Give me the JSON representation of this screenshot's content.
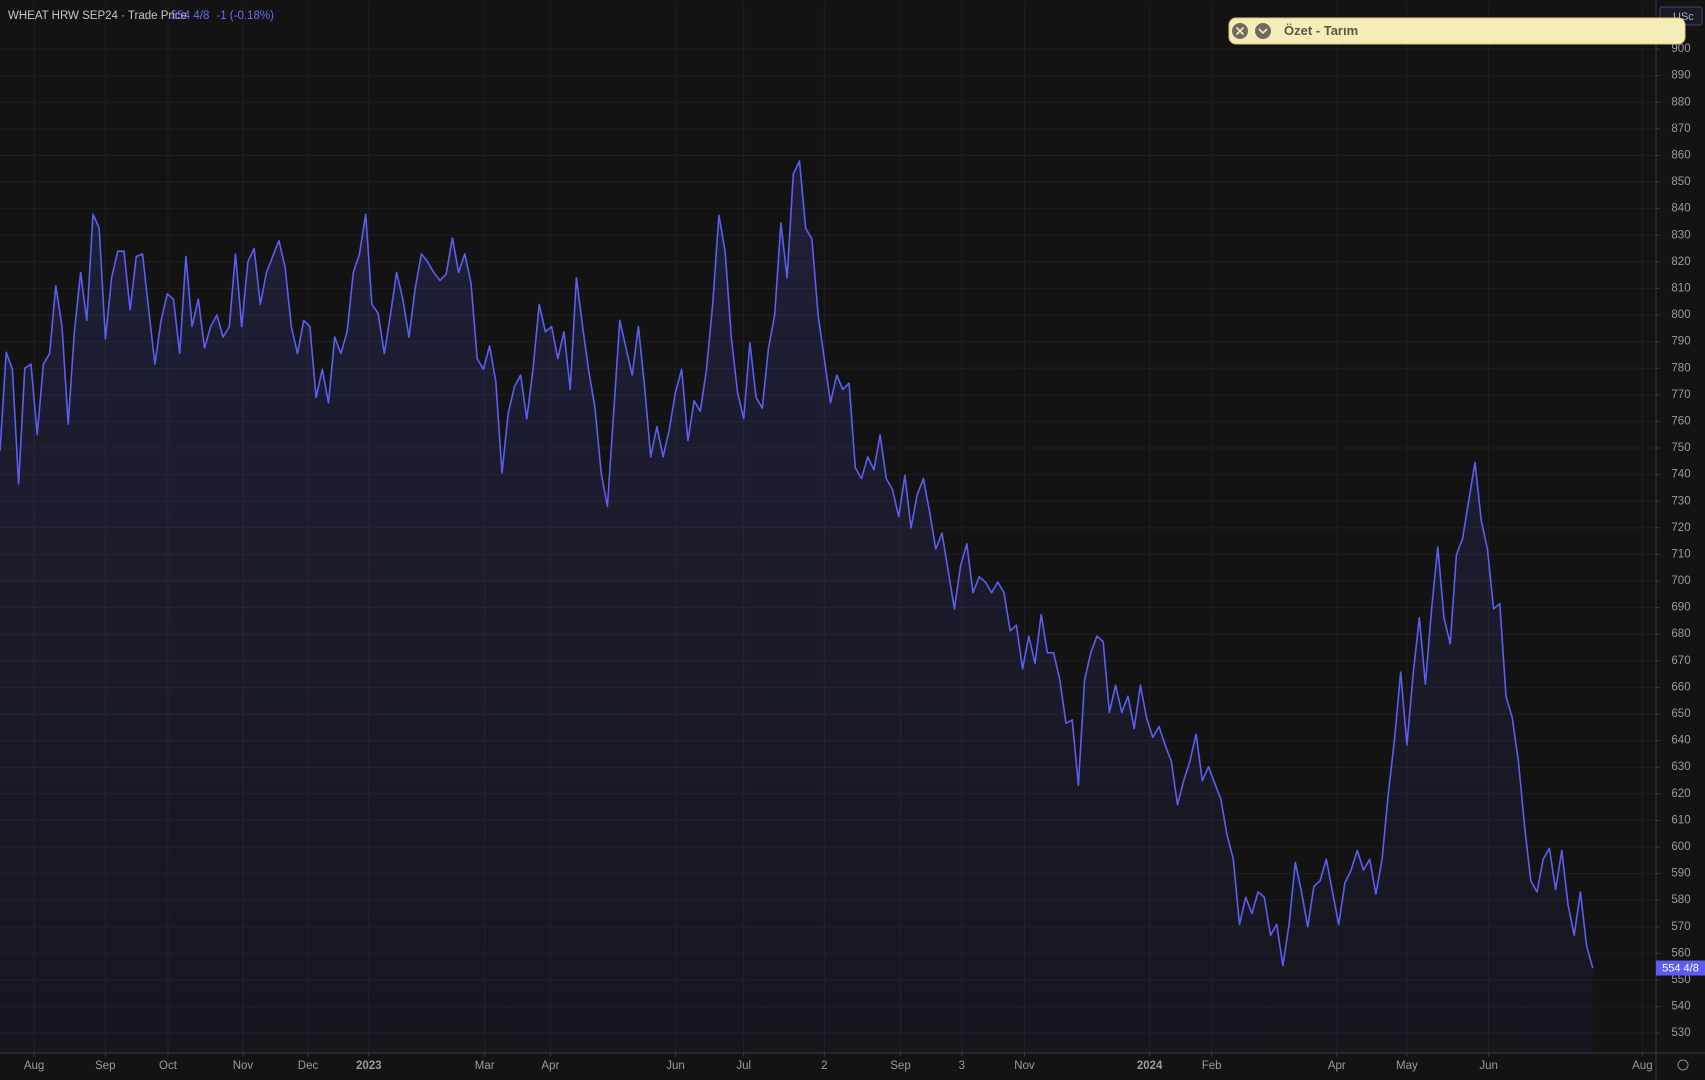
{
  "header": {
    "symbol": "WHEAT HRW SEP24 · Trade Price",
    "change": "-1 (-0.18%)",
    "currency": "USc"
  },
  "panel": {
    "title": "Özet - Tarım"
  },
  "chart_data": {
    "type": "area",
    "area": true,
    "grid": true,
    "last_price": {
      "value": 554.5,
      "label": "554 4/8"
    },
    "series": [
      {
        "color": "#5b5ef0",
        "values": [
          749,
          786,
          779.6,
          736.5,
          780,
          781.5,
          755,
          781.5,
          785.5,
          811,
          795.7,
          759,
          793.7,
          816,
          798,
          838,
          832.6,
          791,
          814,
          824,
          824,
          802,
          822,
          823,
          802,
          781.5,
          798,
          808,
          806,
          785.5,
          822,
          795.7,
          806,
          787.6,
          795.7,
          800,
          791.7,
          795.7,
          823,
          795.7,
          820,
          825,
          804,
          816,
          822,
          828,
          818,
          795.7,
          785.5,
          798,
          795.7,
          769,
          779.6,
          767,
          791.7,
          785.5,
          793.7,
          816,
          823,
          837.9,
          804,
          800.7,
          785.5,
          800,
          816,
          806,
          791.7,
          810,
          823,
          820,
          816,
          813,
          815.4,
          829,
          816,
          823,
          812,
          783.6,
          779.6,
          788.4,
          775,
          740.6,
          763,
          773,
          777.4,
          761,
          779.6,
          804,
          793.7,
          795.7,
          783.6,
          793.7,
          772,
          814,
          795.7,
          778.8,
          765,
          740.6,
          728,
          763,
          798,
          787.6,
          777.4,
          795.7,
          773,
          746.7,
          758,
          746.7,
          757,
          771,
          779.6,
          752.8,
          767.8,
          763.8,
          779.6,
          804,
          837.5,
          824,
          791.7,
          771,
          761,
          789.6,
          769,
          765,
          787.6,
          800,
          834.6,
          814,
          853,
          857.9,
          832.6,
          828.6,
          800,
          783.6,
          767,
          777.4,
          772,
          774.4,
          742.6,
          738.5,
          746.7,
          741.8,
          754.9,
          738.5,
          734.4,
          724.2,
          739.7,
          720,
          732.4,
          738.5,
          726,
          712,
          718,
          703.8,
          689.5,
          705.8,
          714,
          695.6,
          701.6,
          699.6,
          695.6,
          699.6,
          695.6,
          681.3,
          683.4,
          667,
          679.3,
          669,
          687.4,
          673,
          673,
          662.9,
          646.5,
          647.8,
          623.2,
          662.9,
          673,
          679.3,
          677.2,
          650.6,
          660.8,
          650.6,
          656.7,
          644.5,
          660.8,
          648.5,
          641.2,
          645.3,
          638.4,
          632.2,
          615.9,
          624.9,
          632.2,
          642.4,
          624.9,
          630.2,
          624,
          617.9,
          604.4,
          595.4,
          570.9,
          581.1,
          575,
          583.1,
          581.1,
          566.8,
          570.9,
          555.4,
          570.9,
          594.2,
          583.1,
          570,
          585.2,
          587.3,
          595.4,
          583.1,
          570.9,
          586.5,
          591.3,
          598.7,
          591.3,
          595.4,
          582.3,
          595.4,
          620,
          640.4,
          665.7,
          638.4,
          664.9,
          686.2,
          661.2,
          689.5,
          712.8,
          686.2,
          676.4,
          709.8,
          716,
          730.3,
          744.6,
          722.9,
          712,
          689.5,
          691.5,
          656.7,
          648.6,
          632.2,
          607.7,
          587.3,
          583.1,
          595.4,
          599.5,
          584,
          598.7,
          578.3,
          566.8,
          583.1,
          562.7,
          554.5
        ]
      }
    ],
    "xlim": [
      0,
      267.2
    ],
    "xticks": [
      {
        "value": 5.5,
        "label": "Aug"
      },
      {
        "value": 17,
        "label": "Sep"
      },
      {
        "value": 27.1,
        "label": "Oct"
      },
      {
        "value": 39.2,
        "label": "Nov"
      },
      {
        "value": 49.7,
        "label": "Dec"
      },
      {
        "value": 59.5,
        "label": "2023"
      },
      {
        "value": 78.2,
        "label": "Mar"
      },
      {
        "value": 88.8,
        "label": "Apr"
      },
      {
        "value": 109,
        "label": "Jun"
      },
      {
        "value": 120,
        "label": "Jul"
      },
      {
        "value": 133,
        "label": "2"
      },
      {
        "value": 145.3,
        "label": "Sep"
      },
      {
        "value": 155.2,
        "label": "3"
      },
      {
        "value": 165.3,
        "label": "Nov"
      },
      {
        "value": 185.5,
        "label": "2024"
      },
      {
        "value": 195.5,
        "label": "Feb"
      },
      {
        "value": 215.7,
        "label": "Apr"
      },
      {
        "value": 227,
        "label": "May"
      },
      {
        "value": 240.2,
        "label": "Jun"
      },
      {
        "value": 265,
        "label": "Aug"
      }
    ],
    "ylim": [
      522.7,
      917.2
    ],
    "yticks": [
      530,
      540,
      550,
      560,
      570,
      580,
      590,
      600,
      610,
      620,
      630,
      640,
      650,
      660,
      670,
      680,
      690,
      700,
      710,
      720,
      730,
      740,
      750,
      760,
      770,
      780,
      790,
      800,
      810,
      820,
      830,
      840,
      850,
      860,
      870,
      880,
      890,
      900
    ]
  }
}
